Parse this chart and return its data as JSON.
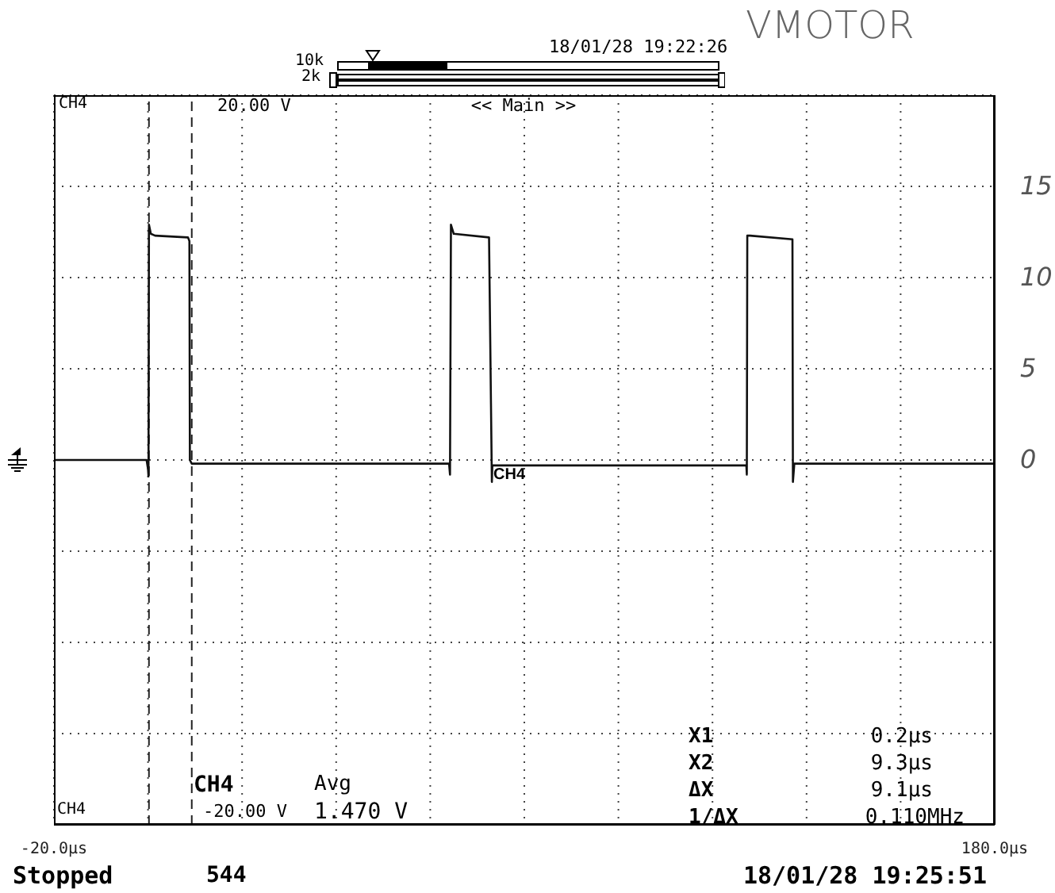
{
  "chart_data": {
    "type": "line",
    "title": "VMOTOR",
    "xlim": [
      -20,
      180
    ],
    "xticks": [
      {
        "value": -20,
        "label": "-20.0µs"
      },
      {
        "value": 0,
        "label": null
      },
      {
        "value": 20,
        "label": null
      },
      {
        "value": 40,
        "label": null
      },
      {
        "value": 60,
        "label": null
      },
      {
        "value": 80,
        "label": null
      },
      {
        "value": 100,
        "label": null
      },
      {
        "value": 120,
        "label": null
      },
      {
        "value": 140,
        "label": null
      },
      {
        "value": 160,
        "label": null
      },
      {
        "value": 180,
        "label": "180.0µs"
      }
    ],
    "ylim": [
      -20,
      20
    ],
    "yticks": [
      {
        "value": -20,
        "label": null
      },
      {
        "value": -15,
        "label": null
      },
      {
        "value": -10,
        "label": null
      },
      {
        "value": -5,
        "label": null
      },
      0,
      5,
      10,
      15,
      {
        "value": 20,
        "label": null
      }
    ],
    "grid": true,
    "legend": false,
    "marker": "none",
    "line_style": "solid",
    "series": [
      {
        "color": "#111111",
        "x": [
          -20,
          -0.3,
          0,
          0.1,
          0.2,
          0.6,
          1.5,
          8.5,
          8.8,
          8.9,
          9.3,
          30,
          64.0,
          64.2,
          64.4,
          65.0,
          72.5,
          73.1,
          73.2,
          73.5,
          100,
          127.2,
          127.3,
          127.4,
          128,
          137.0,
          137.1,
          137.4,
          180
        ],
        "values": [
          0,
          0,
          -0.5,
          -0.9,
          12.9,
          12.4,
          12.3,
          12.2,
          12.0,
          0,
          -0.2,
          -0.2,
          -0.2,
          -0.8,
          12.9,
          12.4,
          12.2,
          -1.2,
          -0.3,
          -0.3,
          -0.3,
          -0.3,
          -0.8,
          12.3,
          12.3,
          12.1,
          -1.2,
          -0.2,
          -0.2
        ]
      }
    ],
    "ref_lines": [
      {
        "axis": "x",
        "value": 0.2,
        "line_style": "dashed",
        "color": "#222222"
      },
      {
        "axis": "x",
        "value": 9.3,
        "line_style": "dashed",
        "color": "#222222"
      }
    ],
    "annotations": [
      "CH4",
      "20.00 V",
      "<< Main >>",
      "18/01/28 19:22:26",
      "10k",
      "2k",
      {
        "text": "CH4",
        "x": 73.1,
        "y": 0
      },
      "CH4",
      "Avg",
      "1.470 V",
      "X1",
      "X2",
      "ΔX",
      "1/ΔX",
      "0.2µs",
      "9.3µs",
      "9.1µs",
      "0.110MHz",
      "CH4",
      "-20.00 V",
      "Stopped",
      "544",
      "18/01/28 19:25:51"
    ]
  }
}
